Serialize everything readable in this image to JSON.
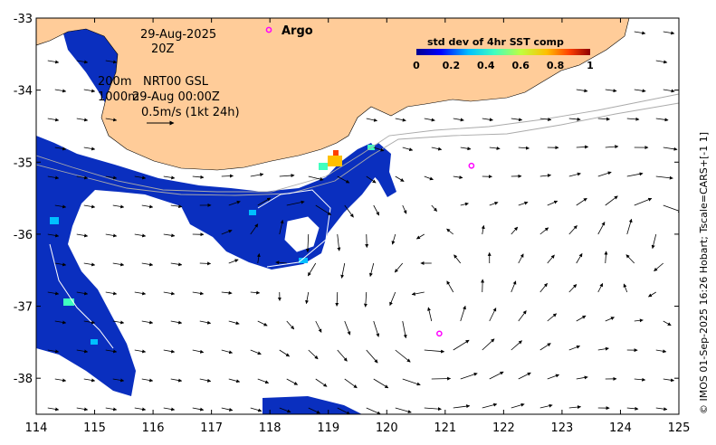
{
  "annotations": {
    "date": "29-Aug-2025",
    "time": "20Z",
    "line1_a": "200m",
    "line1_b": "NRT00 GSL",
    "line2_a": "1000m",
    "line2_b": "29-Aug 00:00Z",
    "scale_label": "0.5m/s (1kt 24h)"
  },
  "argo": {
    "label": "Argo",
    "marker_color": "#ff00ff"
  },
  "colorbar": {
    "title": "std dev of 4hr SST comp",
    "ticks": [
      "0",
      "0.2",
      "0.4",
      "0.6",
      "0.8",
      "1"
    ],
    "colormap": [
      "#00008f",
      "#0000ff",
      "#00bfff",
      "#40ffbf",
      "#bfff40",
      "#ffbf00",
      "#ff4000",
      "#8f0000"
    ]
  },
  "credit": "© IMOS 01-Sep-2025 16:26 Hobart; Tscale=CARS+[-1 1]",
  "colors": {
    "land": "#ffcc99",
    "sst_dominant": "#0a2fbf",
    "arrow": "#000000"
  },
  "axes": {
    "x_ticks": [
      "114",
      "115",
      "116",
      "117",
      "118",
      "119",
      "120",
      "121",
      "122",
      "123",
      "124",
      "125"
    ],
    "y_ticks": [
      "-33",
      "-34",
      "-35",
      "-36",
      "-37",
      "-38"
    ]
  },
  "chart_data": {
    "type": "map",
    "xlim": [
      114,
      125
    ],
    "ylim": [
      -38.5,
      -33
    ],
    "argo_floats": [
      {
        "lon": 121.45,
        "lat": -35.05
      },
      {
        "lon": 120.9,
        "lat": -37.38
      }
    ],
    "argo_legend": {
      "lon": 118.0,
      "lat": -33.2
    }
  }
}
